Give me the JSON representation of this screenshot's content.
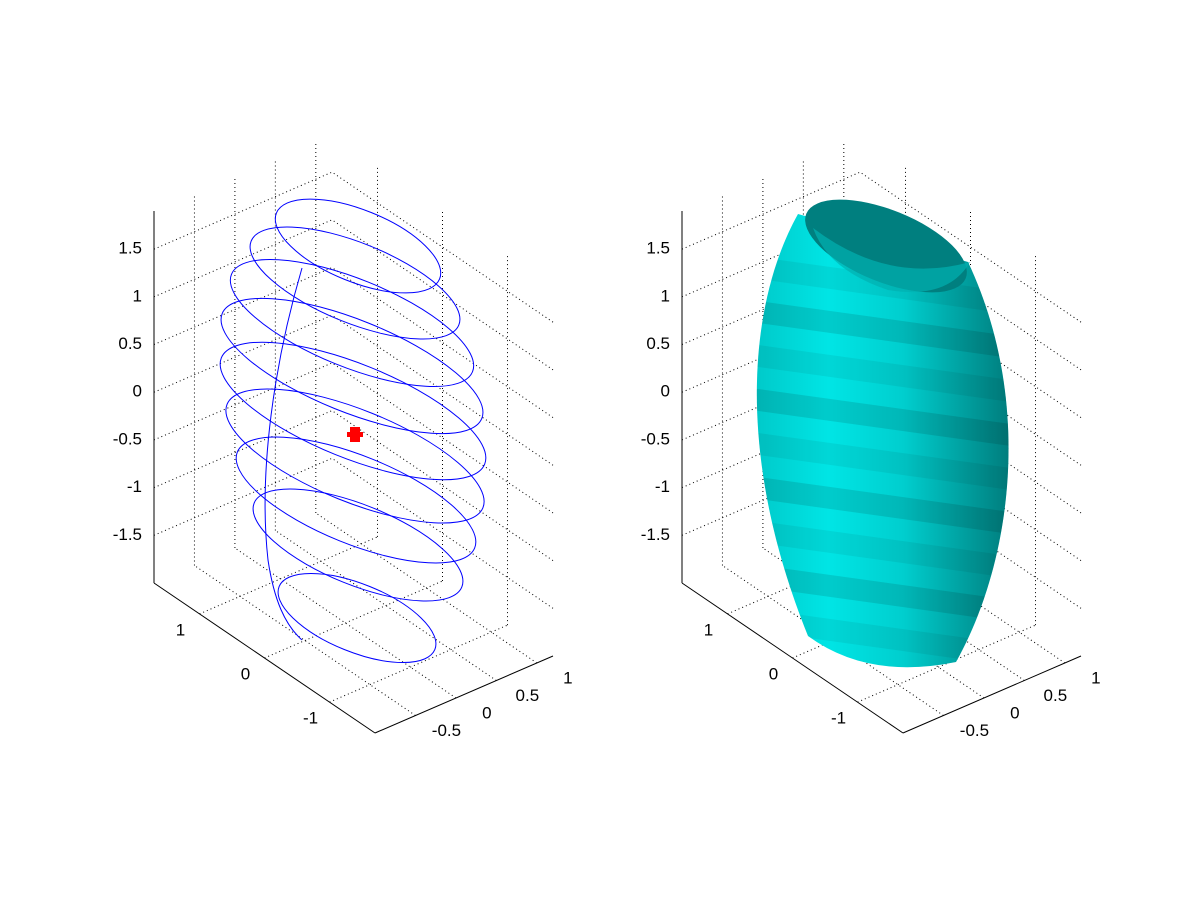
{
  "chart_data": [
    {
      "type": "line3d",
      "color": "#0000ff",
      "marker_color": "#ff0000",
      "xlim": [
        -1,
        1.2
      ],
      "ylim": [
        -1.7,
        1.7
      ],
      "zlim": [
        -2,
        1.9
      ],
      "xticks": [
        -0.5,
        0,
        0.5,
        1
      ],
      "yticks": [
        -1,
        0,
        1
      ],
      "zticks": [
        -1.5,
        -1,
        -0.5,
        0,
        0.5,
        1,
        1.5
      ],
      "grid": true
    },
    {
      "type": "surface",
      "color": "#00e5e5",
      "xlim": [
        -1,
        1.2
      ],
      "ylim": [
        -1.7,
        1.7
      ],
      "zlim": [
        -2,
        1.9
      ],
      "xticks": [
        -0.5,
        0,
        0.5,
        1
      ],
      "yticks": [
        -1,
        0,
        1
      ],
      "zticks": [
        -1.5,
        -1,
        -0.5,
        0,
        0.5,
        1,
        1.5
      ],
      "grid": true
    }
  ]
}
